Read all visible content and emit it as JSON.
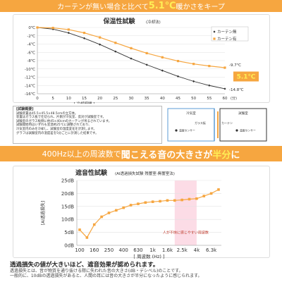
{
  "banner1": {
    "pre": "カーテンが無い場合と比べて",
    "value": "5.1℃",
    "post": "暖かさをキープ"
  },
  "chart1": {
    "title": "保温性試験",
    "subtitle": "(冷却法)",
    "xunit": "(分)",
    "xlabel": "[ 冷却時間 ]",
    "legend": [
      "カーテン無",
      "カーテン有"
    ],
    "end_label_a": "-9.7℃",
    "end_label_b": "-14.8℃",
    "diff_label": "5.1℃"
  },
  "notes": {
    "title": "[試験概要]",
    "lines": [
      "試験装置は45.5×45.5×48.5cmの立方体。",
      "装置はガラス板で仕切られ、片側が冷気室、反対が試験室です。",
      "試験室のガラス板側に約45×40cmのカーテンが吊るされています。",
      "試験開始時はいずれも室温約25℃に調整されており、",
      "冷気室内のみを冷却し、試験室の温度変化を計測します。",
      "グラフは試験室内の温度差を5分ごとに計測した結果です。"
    ]
  },
  "diagram": {
    "cold_room": "冷気室",
    "test_room": "試験室",
    "glass": "ガラス板",
    "curtain": "カーテン",
    "sensor_left": "温度センサー",
    "sensor_right": "温度センサー"
  },
  "banner2": {
    "pre": "400Hz以上の周波数で",
    "mid": "聞こえる音の大きさが",
    "value": "半分",
    "post": "に"
  },
  "chart2": {
    "title": "遮音性試験",
    "subtitle": "(AI透過損失試験 残響室-無響室法)",
    "ylabel": "[AI透過損失]",
    "xlabel": "[ 周波数 (Hz) ]",
    "band_label": "人が不快に感じやすい周波数"
  },
  "footer": {
    "head": "透過損失の値が大きいほど、遮音効果が認められます。",
    "line2": "透過損失とは、音が物質を通り抜ける際に失われた音の大きさ(dB・デシベル)のことです。",
    "line3": "一般的に、10dBの透過損失があると、人間の耳には音の大きさが半分になったように感じられます。"
  },
  "chart_data": [
    {
      "type": "line",
      "title": "保温性試験",
      "x": [
        0,
        5,
        10,
        15,
        20,
        25,
        30,
        35,
        40,
        45,
        50,
        55,
        60
      ],
      "x_tick_labels": [
        "0",
        "5",
        "10",
        "15",
        "20",
        "25",
        "30",
        "35",
        "40",
        "45",
        "50",
        "55",
        "60"
      ],
      "xlim": [
        0,
        60
      ],
      "ylim": [
        -16,
        0
      ],
      "y_ticks": [
        0,
        -2,
        -4,
        -6,
        -8,
        -10,
        -12,
        -14,
        -16
      ],
      "y_tick_labels": [
        "0℃",
        "-2℃",
        "-4℃",
        "-6℃",
        "-8℃",
        "-10℃",
        "-12℃",
        "-14℃",
        "-16℃"
      ],
      "series": [
        {
          "name": "カーテン無",
          "color": "#333333",
          "values": [
            0,
            -0.4,
            -1.3,
            -2.6,
            -4.1,
            -5.8,
            -7.5,
            -9.0,
            -10.4,
            -11.8,
            -13.0,
            -14.0,
            -14.8
          ]
        },
        {
          "name": "カーテン有",
          "color": "#f6a640",
          "values": [
            0,
            -0.1,
            -0.5,
            -1.3,
            -2.4,
            -3.7,
            -5.0,
            -6.2,
            -7.2,
            -8.1,
            -8.8,
            -9.3,
            -9.7
          ]
        }
      ],
      "legend_position": "top-right",
      "grid": true
    },
    {
      "type": "line",
      "title": "遮音性試験",
      "x_tick_labels": [
        "100",
        "160",
        "250",
        "400",
        "630",
        "1k",
        "1.6k",
        "2.5k",
        "4k",
        "6.3k"
      ],
      "points": [
        {
          "x": "100",
          "y": 6.0
        },
        {
          "x": "125",
          "y": 3.0
        },
        {
          "x": "160",
          "y": 8.0
        },
        {
          "x": "200",
          "y": 11.0
        },
        {
          "x": "250",
          "y": 12.5
        },
        {
          "x": "315",
          "y": 13.5
        },
        {
          "x": "400",
          "y": 14.5
        },
        {
          "x": "500",
          "y": 15.5
        },
        {
          "x": "630",
          "y": 16.0
        },
        {
          "x": "800",
          "y": 16.5
        },
        {
          "x": "1k",
          "y": 16.8
        },
        {
          "x": "1.25k",
          "y": 17.0
        },
        {
          "x": "1.6k",
          "y": 17.3
        },
        {
          "x": "2k",
          "y": 17.3
        },
        {
          "x": "2.5k",
          "y": 17.5
        },
        {
          "x": "3.15k",
          "y": 17.8
        },
        {
          "x": "4k",
          "y": 18.0
        },
        {
          "x": "5k",
          "y": 19.0
        },
        {
          "x": "6.3k",
          "y": 20.0
        },
        {
          "x": "8k",
          "y": 21.5
        }
      ],
      "ylim": [
        0,
        25
      ],
      "y_ticks": [
        0,
        5,
        10,
        15,
        20,
        25
      ],
      "y_tick_labels": [
        "0dB",
        "5dB",
        "10dB",
        "15dB",
        "20dB",
        "25dB"
      ],
      "highlight_band": {
        "from": "2k",
        "to": "4k",
        "label": "人が不快に感じやすい周波数"
      },
      "color": "#f6a640",
      "grid": true
    }
  ],
  "colors": {
    "accent": "#f6a640",
    "highlight": "#ffee55",
    "dark": "#333333",
    "band": "#fbd3e0"
  }
}
